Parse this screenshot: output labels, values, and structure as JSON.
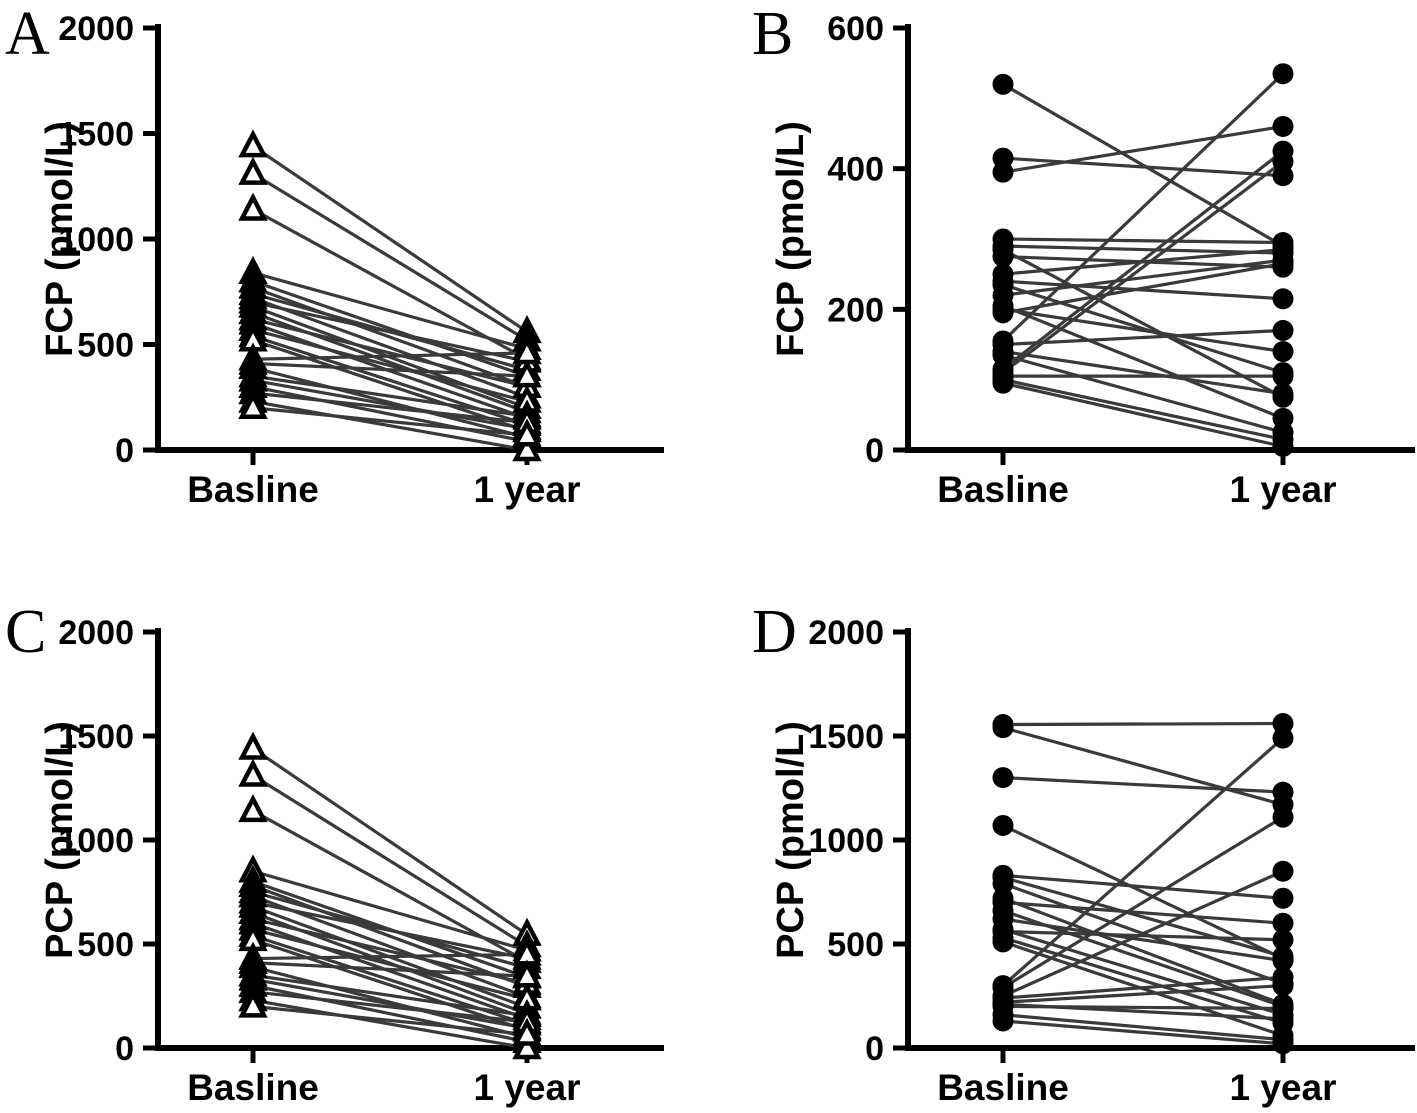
{
  "figure": {
    "background": "#ffffff",
    "axis_color": "#000000",
    "connector_color": "#3a3a3a",
    "marker_color": "#000000",
    "categories": [
      "Basline",
      "1 year"
    ]
  },
  "chart_data": [
    {
      "panel": "A",
      "type": "line",
      "subtype": "paired-before-after",
      "marker": "open-triangle",
      "title": "",
      "xlabel": "",
      "ylabel": "FCP (pmol/L)",
      "categories": [
        "Basline",
        "1 year"
      ],
      "ylim": [
        0,
        2000
      ],
      "yticks": [
        0,
        500,
        1000,
        1500,
        2000
      ],
      "grid": false,
      "legend": "none",
      "pairs": [
        [
          1440,
          560
        ],
        [
          1310,
          520
        ],
        [
          1140,
          430
        ],
        [
          840,
          480
        ],
        [
          800,
          350
        ],
        [
          770,
          300
        ],
        [
          740,
          380
        ],
        [
          720,
          250
        ],
        [
          700,
          420
        ],
        [
          680,
          200
        ],
        [
          650,
          180
        ],
        [
          620,
          300
        ],
        [
          600,
          150
        ],
        [
          570,
          230
        ],
        [
          540,
          120
        ],
        [
          520,
          90
        ],
        [
          430,
          460
        ],
        [
          410,
          350
        ],
        [
          390,
          60
        ],
        [
          350,
          160
        ],
        [
          330,
          100
        ],
        [
          300,
          40
        ],
        [
          270,
          130
        ],
        [
          230,
          0
        ],
        [
          200,
          70
        ]
      ]
    },
    {
      "panel": "B",
      "type": "line",
      "subtype": "paired-before-after",
      "marker": "filled-circle",
      "title": "",
      "xlabel": "",
      "ylabel": "FCP (pmol/L)",
      "categories": [
        "Basline",
        "1 year"
      ],
      "ylim": [
        0,
        600
      ],
      "yticks": [
        0,
        200,
        400,
        600
      ],
      "grid": false,
      "legend": "none",
      "pairs": [
        [
          520,
          290
        ],
        [
          415,
          390
        ],
        [
          395,
          460
        ],
        [
          300,
          295
        ],
        [
          290,
          280
        ],
        [
          285,
          75
        ],
        [
          275,
          260
        ],
        [
          250,
          285
        ],
        [
          240,
          215
        ],
        [
          235,
          110
        ],
        [
          220,
          270
        ],
        [
          205,
          45
        ],
        [
          200,
          140
        ],
        [
          195,
          265
        ],
        [
          155,
          535
        ],
        [
          150,
          170
        ],
        [
          140,
          80
        ],
        [
          135,
          25
        ],
        [
          115,
          425
        ],
        [
          110,
          410
        ],
        [
          105,
          105
        ],
        [
          100,
          15
        ],
        [
          95,
          5
        ]
      ]
    },
    {
      "panel": "C",
      "type": "line",
      "subtype": "paired-before-after",
      "marker": "open-triangle",
      "title": "",
      "xlabel": "",
      "ylabel": "PCP (pmol/L)",
      "categories": [
        "Basline",
        "1 year"
      ],
      "ylim": [
        0,
        2000
      ],
      "yticks": [
        0,
        500,
        1000,
        1500,
        2000
      ],
      "grid": false,
      "legend": "none",
      "pairs": [
        [
          1440,
          545
        ],
        [
          1310,
          490
        ],
        [
          1140,
          415
        ],
        [
          850,
          470
        ],
        [
          800,
          340
        ],
        [
          780,
          295
        ],
        [
          750,
          385
        ],
        [
          730,
          245
        ],
        [
          700,
          430
        ],
        [
          680,
          195
        ],
        [
          650,
          165
        ],
        [
          620,
          310
        ],
        [
          600,
          140
        ],
        [
          570,
          235
        ],
        [
          540,
          115
        ],
        [
          520,
          85
        ],
        [
          430,
          450
        ],
        [
          410,
          345
        ],
        [
          390,
          50
        ],
        [
          350,
          155
        ],
        [
          330,
          95
        ],
        [
          300,
          30
        ],
        [
          270,
          125
        ],
        [
          230,
          0
        ],
        [
          200,
          65
        ]
      ]
    },
    {
      "panel": "D",
      "type": "line",
      "subtype": "paired-before-after",
      "marker": "filled-circle",
      "title": "",
      "xlabel": "",
      "ylabel": "PCP (pmol/L)",
      "categories": [
        "Basline",
        "1 year"
      ],
      "ylim": [
        0,
        2000
      ],
      "yticks": [
        0,
        500,
        1000,
        1500,
        2000
      ],
      "grid": false,
      "legend": "none",
      "pairs": [
        [
          1555,
          1560
        ],
        [
          1540,
          1170
        ],
        [
          1300,
          1230
        ],
        [
          1070,
          430
        ],
        [
          830,
          720
        ],
        [
          820,
          440
        ],
        [
          790,
          310
        ],
        [
          720,
          210
        ],
        [
          700,
          600
        ],
        [
          660,
          200
        ],
        [
          620,
          420
        ],
        [
          570,
          160
        ],
        [
          560,
          520
        ],
        [
          530,
          120
        ],
        [
          510,
          60
        ],
        [
          300,
          1490
        ],
        [
          290,
          1110
        ],
        [
          250,
          850
        ],
        [
          240,
          340
        ],
        [
          220,
          300
        ],
        [
          210,
          140
        ],
        [
          200,
          190
        ],
        [
          160,
          40
        ],
        [
          130,
          20
        ]
      ]
    }
  ]
}
